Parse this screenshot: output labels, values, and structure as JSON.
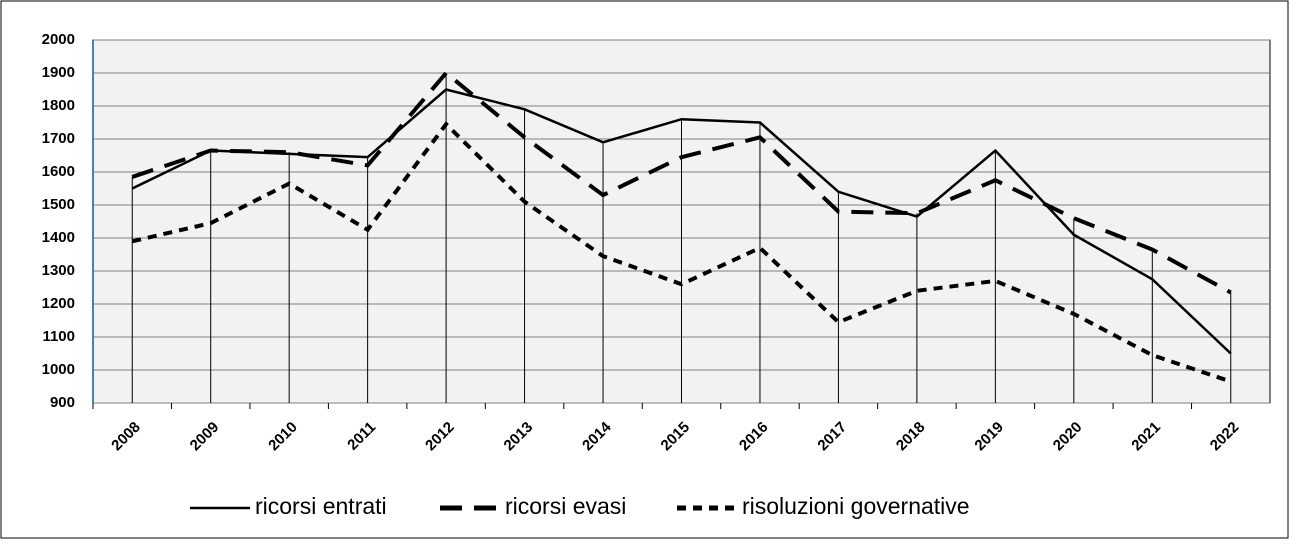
{
  "chart_data": {
    "type": "line",
    "categories": [
      "2008",
      "2009",
      "2010",
      "2011",
      "2012",
      "2013",
      "2014",
      "2015",
      "2016",
      "2017",
      "2018",
      "2019",
      "2020",
      "2021",
      "2022"
    ],
    "series": [
      {
        "name": "ricorsi entrati",
        "color": "#000000",
        "line_style": "solid",
        "values": [
          1550,
          1665,
          1655,
          1645,
          1850,
          1790,
          1690,
          1760,
          1750,
          1540,
          1465,
          1665,
          1410,
          1275,
          1050
        ]
      },
      {
        "name": "ricorsi evasi",
        "color": "#000000",
        "line_style": "long-dash",
        "values": [
          1585,
          1665,
          1660,
          1620,
          1900,
          1705,
          1530,
          1645,
          1705,
          1480,
          1475,
          1575,
          1460,
          1365,
          1235
        ]
      },
      {
        "name": "risoluzioni governative",
        "color": "#000000",
        "line_style": "short-dash",
        "values": [
          1390,
          1445,
          1565,
          1425,
          1745,
          1510,
          1345,
          1260,
          1370,
          1145,
          1240,
          1270,
          1170,
          1045,
          965
        ]
      }
    ],
    "ylim": [
      900,
      2000
    ],
    "yticks": [
      900,
      1000,
      1100,
      1200,
      1300,
      1400,
      1500,
      1600,
      1700,
      1800,
      1900,
      2000
    ],
    "grid": true,
    "drop_lines": true,
    "legend": "bottom"
  }
}
